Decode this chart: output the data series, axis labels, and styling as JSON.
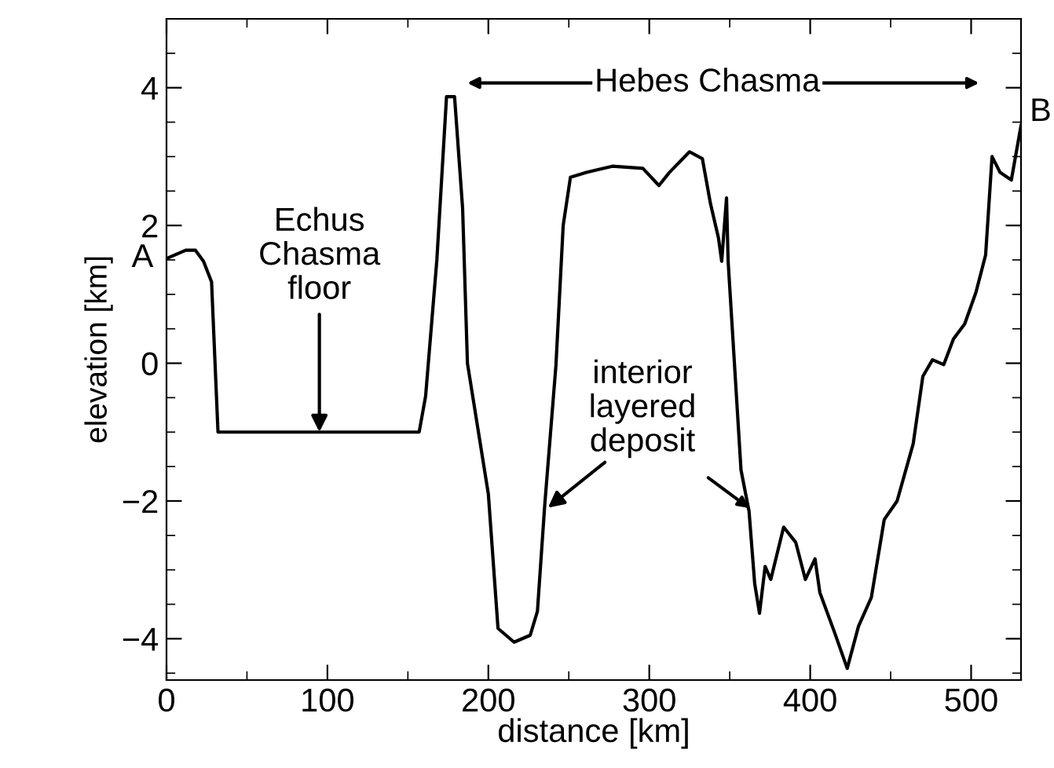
{
  "chart_data": {
    "type": "line",
    "xlabel": "distance [km]",
    "ylabel": "elevation [km]",
    "xlim": [
      0,
      531
    ],
    "ylim": [
      -4.6,
      5
    ],
    "xticks": [
      0,
      100,
      200,
      300,
      400,
      500
    ],
    "yticks": [
      -4,
      -2,
      0,
      2,
      4
    ],
    "grid": false,
    "legend": false,
    "marker": "none",
    "line_style": "solid",
    "series": [
      {
        "color": "#000000",
        "x": [
          0,
          12,
          18,
          23,
          28,
          32,
          157,
          161,
          168,
          174,
          179,
          184,
          187,
          200,
          206,
          216,
          226,
          230.5,
          235,
          242,
          246.5,
          251,
          261,
          277,
          296,
          306,
          312.5,
          325,
          333,
          338,
          343,
          345,
          348,
          349,
          357,
          362,
          365.5,
          368.5,
          372,
          375.5,
          383.5,
          391,
          397,
          403,
          406,
          415,
          423,
          430,
          438,
          446,
          454,
          464,
          470,
          476,
          483,
          489,
          496,
          503,
          509,
          513,
          518,
          525,
          531
        ],
        "values": [
          1.52,
          1.64,
          1.64,
          1.48,
          1.18,
          -1,
          -1,
          -0.48,
          1.5,
          3.87,
          3.87,
          2.25,
          0,
          -1.9,
          -3.85,
          -4.05,
          -3.95,
          -3.6,
          -2.07,
          -0.03,
          2.0,
          2.7,
          2.77,
          2.86,
          2.83,
          2.58,
          2.77,
          3.07,
          2.97,
          2.32,
          1.82,
          1.48,
          2.4,
          1.48,
          -1.55,
          -2.15,
          -3.2,
          -3.63,
          -2.95,
          -3.14,
          -2.38,
          -2.6,
          -3.14,
          -2.84,
          -3.33,
          -3.9,
          -4.43,
          -3.82,
          -3.4,
          -2.27,
          -2.0,
          -1.17,
          -0.19,
          0.05,
          -0.02,
          0.35,
          0.57,
          1.03,
          1.57,
          3.0,
          2.77,
          2.66,
          3.45
        ]
      }
    ],
    "annotations": [
      {
        "text": "A",
        "x": 0,
        "y": 1.52
      },
      {
        "text": "B",
        "x": 531,
        "y": 3.45
      },
      {
        "text": "Echus\nChasma\nfloor",
        "x": 95,
        "y": -1
      },
      "Hebes Chasma",
      {
        "text": "interior\nlayered\ndeposit",
        "x": 237,
        "y": -2.1
      }
    ]
  }
}
